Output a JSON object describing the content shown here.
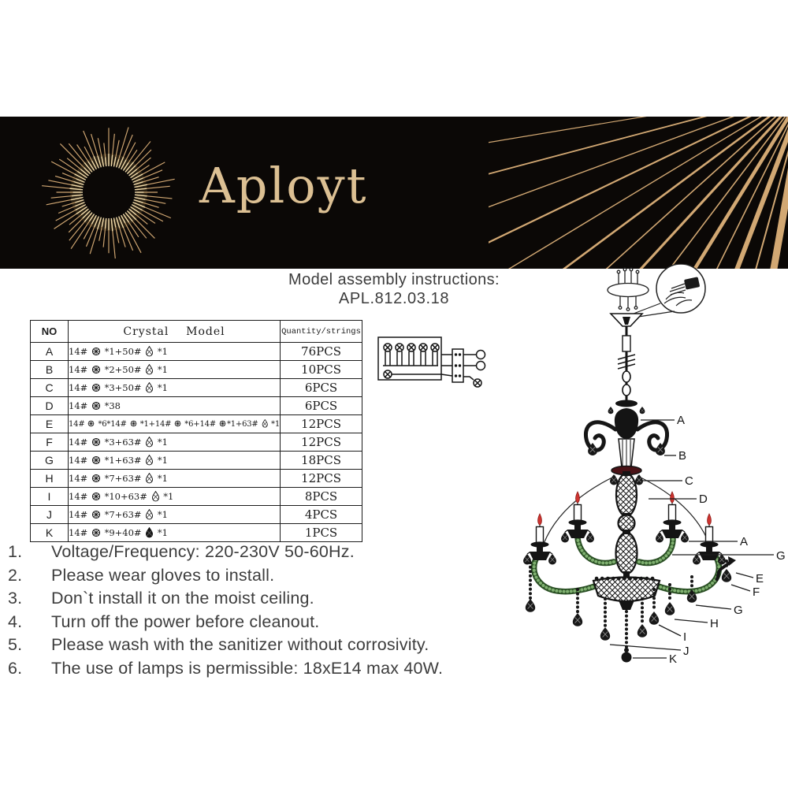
{
  "brand": {
    "name": "Aployt"
  },
  "title": {
    "line1": "Model assembly instructions:",
    "line2": "APL.812.03.18"
  },
  "table": {
    "headers": {
      "no": "NO",
      "model": "Crystal    Model",
      "qty": "Quantity/strings"
    },
    "rows": [
      {
        "no": "A",
        "model": "14# {b} *1+50# {d} *1",
        "qty": "76PCS"
      },
      {
        "no": "B",
        "model": "14# {b} *2+50# {d} *1",
        "qty": "10PCS"
      },
      {
        "no": "C",
        "model": "14# {b} *3+50# {d} *1",
        "qty": "6PCS"
      },
      {
        "no": "D",
        "model": "14# {b} *38",
        "qty": "6PCS"
      },
      {
        "no": "E",
        "model": "14# {b} *6*14# {b} *1+14# {b} *6+14# {b}*1+63# {d} *1",
        "qty": "12PCS"
      },
      {
        "no": "F",
        "model": "14# {b} *3+63# {d} *1",
        "qty": "12PCS"
      },
      {
        "no": "G",
        "model": "14# {b} *1+63# {d} *1",
        "qty": "18PCS"
      },
      {
        "no": "H",
        "model": "14# {b} *7+63# {d} *1",
        "qty": "12PCS"
      },
      {
        "no": "I",
        "model": "14# {b} *10+63# {d} *1",
        "qty": "8PCS"
      },
      {
        "no": "J",
        "model": "14# {b} *7+63# {d} *1",
        "qty": "4PCS"
      },
      {
        "no": "K",
        "model": "14# {b} *9+40# {D} *1",
        "qty": "1PCS"
      }
    ]
  },
  "icons": {
    "b": "crosshatch-bead-icon",
    "d": "crystal-drop-icon",
    "D": "dark-crystal-drop-icon",
    "logo": "sunburst-logo-icon"
  },
  "instructions": {
    "items": [
      {
        "num": "1.",
        "text": "Voltage/Frequency: 220-230V 50-60Hz."
      },
      {
        "num": "2.",
        "text": "Please wear gloves to install."
      },
      {
        "num": "3.",
        "text": "Don`t install it on the moist ceiling."
      },
      {
        "num": "4.",
        "text": "Turn off the power before cleanout."
      },
      {
        "num": "5.",
        "text": "Please wash with the sanitizer without corrosivity."
      },
      {
        "num": "6.",
        "text": "The use of lamps is permissible: 18xE14 max 40W."
      }
    ]
  },
  "diagram": {
    "labels": [
      "A",
      "B",
      "C",
      "D",
      "A",
      "G",
      "E",
      "F",
      "G",
      "H",
      "I",
      "J",
      "K"
    ]
  },
  "colors": {
    "banner_bg": "#0b0806",
    "gold": "#d2a873",
    "gold_bright": "#f2dcab",
    "body_text": "#3d3d3d",
    "flame_red": "#cf3430",
    "arm_green": "#2a4f24",
    "arm_green_beads": "#7fb070"
  }
}
